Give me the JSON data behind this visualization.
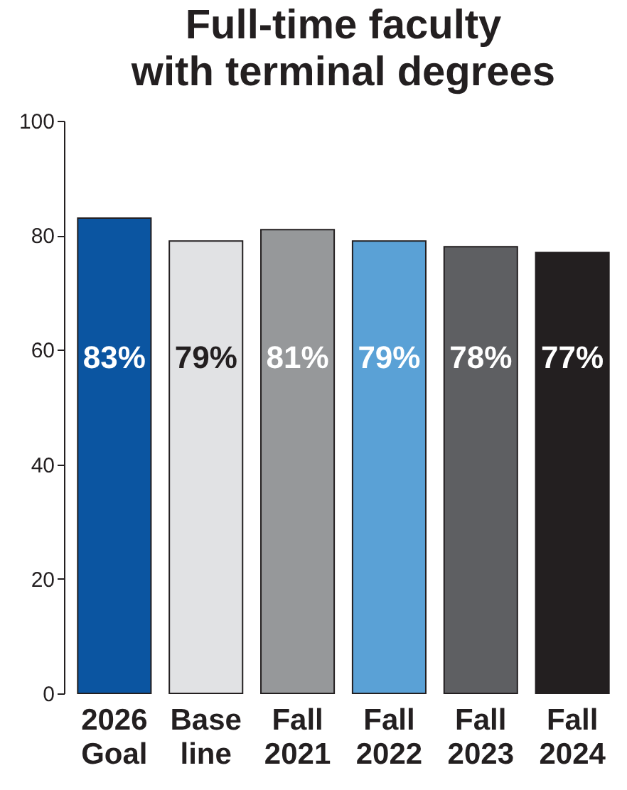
{
  "chart_data": {
    "type": "bar",
    "title": "Full-time faculty with terminal degrees",
    "categories": [
      "2026 Goal",
      "Base line",
      "Fall 2021",
      "Fall 2022",
      "Fall 2023",
      "Fall 2024"
    ],
    "values": [
      83,
      79,
      81,
      79,
      78,
      77
    ],
    "colors": [
      "#0b55a1",
      "#e1e2e4",
      "#96989a",
      "#5aa1d6",
      "#5e5f62",
      "#231f20"
    ],
    "value_labels": [
      "83%",
      "79%",
      "81%",
      "79%",
      "78%",
      "77%"
    ],
    "ylim": [
      0,
      100
    ],
    "yticks": [
      0,
      20,
      40,
      60,
      80,
      100
    ],
    "grid": false,
    "legend": false
  }
}
